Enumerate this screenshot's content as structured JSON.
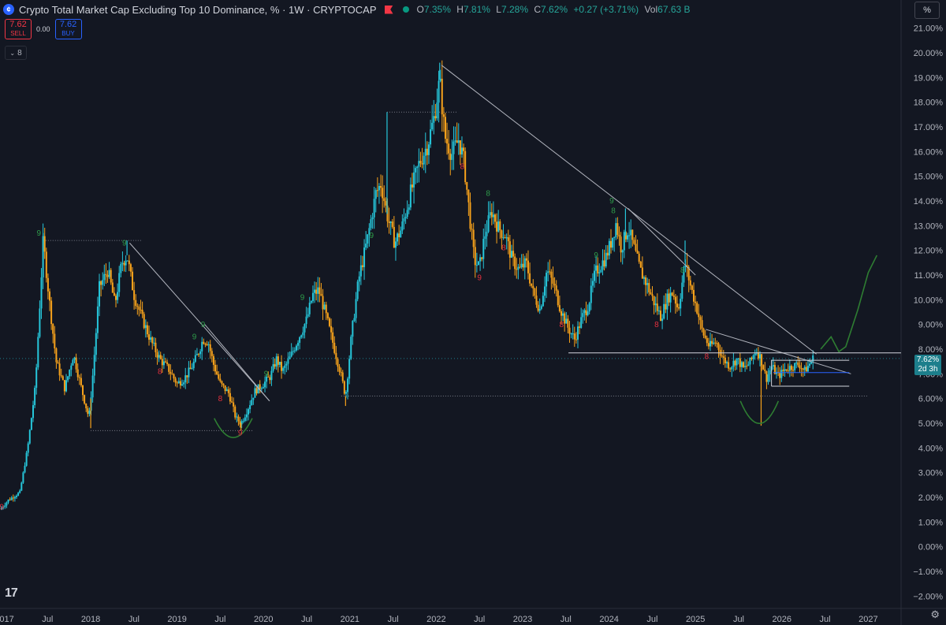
{
  "header": {
    "title": "Crypto Total Market Cap Excluding Top 10 Dominance, % · 1W · CRYPTOCAP",
    "ohlc": {
      "o_label": "O",
      "o": "7.35%",
      "h_label": "H",
      "h": "7.81%",
      "l_label": "L",
      "l": "7.28%",
      "c_label": "C",
      "c": "7.62%",
      "change": "+0.27 (+3.71%)",
      "vol_label": "Vol",
      "vol": "67.63 B"
    }
  },
  "trade": {
    "sell_price": "7.62",
    "sell_label": "SELL",
    "spread": "0.00",
    "buy_price": "7.62",
    "buy_label": "BUY"
  },
  "indicator_count": "8",
  "unit_label": "%",
  "price_badge": {
    "price": "7.62%",
    "countdown": "2d 3h"
  },
  "colors": {
    "background": "#131722",
    "bull": "#26c6da",
    "bear": "#f7a21b",
    "accent": "#2962ff",
    "badge": "#1d7f8c"
  },
  "icons": {
    "logo": "tradingview-logo-icon",
    "settings": "gear-icon",
    "flag": "flag-icon"
  },
  "chart_data": {
    "type": "candlestick",
    "timeframe": "1W",
    "y_axis": {
      "ticks": [
        "21.00%",
        "20.00%",
        "19.00%",
        "18.00%",
        "17.00%",
        "16.00%",
        "15.00%",
        "14.00%",
        "13.00%",
        "12.00%",
        "11.00%",
        "10.00%",
        "9.00%",
        "8.00%",
        "7.00%",
        "6.00%",
        "5.00%",
        "4.00%",
        "3.00%",
        "2.00%",
        "1.00%",
        "0.00%",
        "−1.00%",
        "−2.00%"
      ],
      "ylim": [
        -2.5,
        21.5
      ],
      "position": "right"
    },
    "x_axis": {
      "ticks": [
        {
          "label": "2017",
          "t": 2017.0
        },
        {
          "label": "Jul",
          "t": 2017.5
        },
        {
          "label": "2018",
          "t": 2018.0
        },
        {
          "label": "Jul",
          "t": 2018.5
        },
        {
          "label": "2019",
          "t": 2019.0
        },
        {
          "label": "Jul",
          "t": 2019.5
        },
        {
          "label": "2020",
          "t": 2020.0
        },
        {
          "label": "Jul",
          "t": 2020.5
        },
        {
          "label": "2021",
          "t": 2021.0
        },
        {
          "label": "Jul",
          "t": 2021.5
        },
        {
          "label": "2022",
          "t": 2022.0
        },
        {
          "label": "Jul",
          "t": 2022.5
        },
        {
          "label": "2023",
          "t": 2023.0
        },
        {
          "label": "Jul",
          "t": 2023.5
        },
        {
          "label": "2024",
          "t": 2024.0
        },
        {
          "label": "Jul",
          "t": 2024.5
        },
        {
          "label": "2025",
          "t": 2025.0
        },
        {
          "label": "Jul",
          "t": 2025.5
        },
        {
          "label": "2026",
          "t": 2026.0
        },
        {
          "label": "Jul",
          "t": 2026.5
        },
        {
          "label": "2027",
          "t": 2027.0
        }
      ],
      "xlim": [
        2016.95,
        2027.38
      ]
    },
    "price_path": [
      [
        2016.95,
        1.5
      ],
      [
        2017.05,
        1.9
      ],
      [
        2017.18,
        2.2
      ],
      [
        2017.27,
        4.0
      ],
      [
        2017.36,
        6.5
      ],
      [
        2017.45,
        12.4
      ],
      [
        2017.52,
        10.0
      ],
      [
        2017.6,
        7.5
      ],
      [
        2017.7,
        6.4
      ],
      [
        2017.8,
        7.8
      ],
      [
        2017.9,
        6.3
      ],
      [
        2017.98,
        5.2
      ],
      [
        2018.03,
        7.2
      ],
      [
        2018.1,
        10.5
      ],
      [
        2018.2,
        11.2
      ],
      [
        2018.28,
        9.8
      ],
      [
        2018.36,
        11.5
      ],
      [
        2018.42,
        11.8
      ],
      [
        2018.5,
        10.2
      ],
      [
        2018.6,
        9.2
      ],
      [
        2018.7,
        8.3
      ],
      [
        2018.8,
        7.6
      ],
      [
        2018.9,
        7.2
      ],
      [
        2019.0,
        6.6
      ],
      [
        2019.08,
        6.8
      ],
      [
        2019.16,
        7.2
      ],
      [
        2019.24,
        7.8
      ],
      [
        2019.3,
        8.4
      ],
      [
        2019.36,
        8.3
      ],
      [
        2019.42,
        7.4
      ],
      [
        2019.5,
        6.6
      ],
      [
        2019.6,
        6.2
      ],
      [
        2019.68,
        5.2
      ],
      [
        2019.74,
        5.0
      ],
      [
        2019.82,
        5.6
      ],
      [
        2019.9,
        6.3
      ],
      [
        2020.0,
        6.6
      ],
      [
        2020.08,
        6.9
      ],
      [
        2020.15,
        7.6
      ],
      [
        2020.22,
        7.1
      ],
      [
        2020.3,
        7.6
      ],
      [
        2020.4,
        8.4
      ],
      [
        2020.5,
        9.2
      ],
      [
        2020.57,
        10.2
      ],
      [
        2020.64,
        10.4
      ],
      [
        2020.72,
        9.4
      ],
      [
        2020.8,
        8.3
      ],
      [
        2020.88,
        7.2
      ],
      [
        2020.95,
        6.1
      ],
      [
        2021.02,
        8.6
      ],
      [
        2021.1,
        10.8
      ],
      [
        2021.2,
        12.4
      ],
      [
        2021.3,
        14.3
      ],
      [
        2021.36,
        14.7
      ],
      [
        2021.44,
        13.3
      ],
      [
        2021.52,
        12.3
      ],
      [
        2021.6,
        12.9
      ],
      [
        2021.7,
        14.3
      ],
      [
        2021.8,
        15.5
      ],
      [
        2021.9,
        16.3
      ],
      [
        2021.97,
        17.3
      ],
      [
        2022.04,
        18.9
      ],
      [
        2022.1,
        16.6
      ],
      [
        2022.18,
        15.9
      ],
      [
        2022.26,
        16.5
      ],
      [
        2022.32,
        15.6
      ],
      [
        2022.38,
        13.6
      ],
      [
        2022.44,
        11.6
      ],
      [
        2022.5,
        11.3
      ],
      [
        2022.56,
        12.6
      ],
      [
        2022.64,
        13.6
      ],
      [
        2022.72,
        12.9
      ],
      [
        2022.8,
        12.6
      ],
      [
        2022.88,
        11.6
      ],
      [
        2022.96,
        11.2
      ],
      [
        2023.04,
        11.5
      ],
      [
        2023.12,
        10.3
      ],
      [
        2023.2,
        9.6
      ],
      [
        2023.28,
        11.2
      ],
      [
        2023.36,
        10.6
      ],
      [
        2023.44,
        9.6
      ],
      [
        2023.52,
        8.9
      ],
      [
        2023.6,
        8.4
      ],
      [
        2023.68,
        9.2
      ],
      [
        2023.76,
        9.8
      ],
      [
        2023.84,
        11.1
      ],
      [
        2023.9,
        11.4
      ],
      [
        2023.96,
        11.7
      ],
      [
        2024.02,
        12.3
      ],
      [
        2024.08,
        13.1
      ],
      [
        2024.14,
        12.1
      ],
      [
        2024.22,
        12.9
      ],
      [
        2024.28,
        12.2
      ],
      [
        2024.36,
        11.2
      ],
      [
        2024.44,
        10.6
      ],
      [
        2024.52,
        9.9
      ],
      [
        2024.6,
        9.3
      ],
      [
        2024.68,
        10.1
      ],
      [
        2024.74,
        10.3
      ],
      [
        2024.8,
        9.6
      ],
      [
        2024.88,
        11.5
      ],
      [
        2024.94,
        10.6
      ],
      [
        2025.02,
        9.6
      ],
      [
        2025.08,
        8.7
      ],
      [
        2025.16,
        8.1
      ],
      [
        2025.24,
        8.3
      ],
      [
        2025.32,
        7.6
      ],
      [
        2025.4,
        7.3
      ],
      [
        2025.48,
        7.6
      ],
      [
        2025.56,
        7.2
      ],
      [
        2025.64,
        7.5
      ],
      [
        2025.7,
        8.0
      ],
      [
        2025.76,
        7.6
      ],
      [
        2025.82,
        6.8
      ],
      [
        2025.88,
        7.3
      ],
      [
        2025.96,
        6.9
      ],
      [
        2026.04,
        7.2
      ],
      [
        2026.12,
        7.3
      ],
      [
        2026.2,
        7.4
      ],
      [
        2026.26,
        7.1
      ],
      [
        2026.32,
        7.4
      ],
      [
        2026.36,
        7.62
      ]
    ],
    "wick_extremes": [
      {
        "t": 2017.45,
        "high": 12.7
      },
      {
        "t": 2022.04,
        "high": 19.6
      },
      {
        "t": 2021.43,
        "high": 17.6
      },
      {
        "t": 2018.42,
        "high": 12.4
      },
      {
        "t": 2024.88,
        "high": 12.4
      },
      {
        "t": 2024.19,
        "high": 13.7
      },
      {
        "t": 2019.74,
        "low": 4.7
      },
      {
        "t": 2020.95,
        "low": 5.7
      },
      {
        "t": 2018.0,
        "low": 4.8
      },
      {
        "t": 2025.76,
        "low": 4.9
      }
    ],
    "drawings": {
      "trendlines": [
        {
          "from": [
            2018.45,
            12.3
          ],
          "to": [
            2020.07,
            5.9
          ]
        },
        {
          "from": [
            2019.32,
            9.0
          ],
          "to": [
            2020.07,
            5.9
          ]
        },
        {
          "from": [
            2022.06,
            19.5
          ],
          "to": [
            2026.4,
            7.8
          ]
        },
        {
          "from": [
            2025.12,
            8.8
          ],
          "to": [
            2026.8,
            7.0
          ]
        },
        {
          "from": [
            2024.22,
            13.7
          ],
          "to": [
            2025.0,
            11.0
          ]
        }
      ],
      "horizontal_solid": [
        {
          "y": 7.85,
          "from": 2023.53,
          "to": 2027.38
        },
        {
          "y": 7.55,
          "from": 2025.88,
          "to": 2026.78
        },
        {
          "y": 6.5,
          "from": 2025.88,
          "to": 2026.78
        }
      ],
      "horizontal_dotted": [
        {
          "y": 12.4,
          "from": 2017.45,
          "to": 2018.6
        },
        {
          "y": 4.7,
          "from": 2018.0,
          "to": 2019.88
        },
        {
          "y": 17.6,
          "from": 2021.43,
          "to": 2022.24
        },
        {
          "y": 6.1,
          "from": 2020.9,
          "to": 2027.0
        },
        {
          "y": 7.62,
          "from": 2016.95,
          "to": 2027.38
        }
      ],
      "horizontal_blue": [
        {
          "y": 7.05,
          "from": 2025.9,
          "to": 2026.78
        }
      ],
      "projection": [
        [
          2026.45,
          8.0
        ],
        [
          2026.57,
          8.5
        ],
        [
          2026.66,
          7.9
        ],
        [
          2026.74,
          8.1
        ],
        [
          2026.88,
          9.6
        ],
        [
          2027.0,
          11.1
        ],
        [
          2027.1,
          11.8
        ]
      ],
      "arcs": [
        {
          "center": [
            2019.65,
            4.6
          ],
          "rx": 0.22,
          "ry": 0.6
        },
        {
          "center": [
            2025.74,
            5.2
          ],
          "rx": 0.22,
          "ry": 0.7
        }
      ]
    },
    "td_markers": [
      {
        "t": 2017.4,
        "y": 12.6,
        "label": "9",
        "color": "green"
      },
      {
        "t": 2018.39,
        "y": 12.2,
        "label": "9",
        "color": "green"
      },
      {
        "t": 2019.2,
        "y": 8.4,
        "label": "9",
        "color": "green"
      },
      {
        "t": 2019.3,
        "y": 8.9,
        "label": "9",
        "color": "green"
      },
      {
        "t": 2020.03,
        "y": 6.9,
        "label": "9",
        "color": "green"
      },
      {
        "t": 2020.45,
        "y": 10.0,
        "label": "9",
        "color": "green"
      },
      {
        "t": 2021.25,
        "y": 12.5,
        "label": "9",
        "color": "green"
      },
      {
        "t": 2022.6,
        "y": 14.2,
        "label": "8",
        "color": "green"
      },
      {
        "t": 2023.85,
        "y": 11.7,
        "label": "9",
        "color": "green"
      },
      {
        "t": 2024.03,
        "y": 13.9,
        "label": "9",
        "color": "green"
      },
      {
        "t": 2024.05,
        "y": 13.5,
        "label": "8",
        "color": "green"
      },
      {
        "t": 2024.85,
        "y": 11.1,
        "label": "8",
        "color": "green"
      },
      {
        "t": 2022.3,
        "y": 15.3,
        "label": "8",
        "color": "red"
      },
      {
        "t": 2022.5,
        "y": 10.8,
        "label": "9",
        "color": "red"
      },
      {
        "t": 2022.78,
        "y": 12.0,
        "label": "8",
        "color": "red"
      },
      {
        "t": 2023.45,
        "y": 8.9,
        "label": "8",
        "color": "red"
      },
      {
        "t": 2024.55,
        "y": 8.9,
        "label": "8",
        "color": "red"
      },
      {
        "t": 2025.13,
        "y": 7.6,
        "label": "8",
        "color": "red"
      },
      {
        "t": 2019.5,
        "y": 5.9,
        "label": "8",
        "color": "red"
      },
      {
        "t": 2019.73,
        "y": 4.5,
        "label": "9",
        "color": "red"
      },
      {
        "t": 2018.8,
        "y": 7.0,
        "label": "8",
        "color": "red"
      },
      {
        "t": 2016.97,
        "y": 1.5,
        "label": "9",
        "color": "red"
      }
    ]
  }
}
